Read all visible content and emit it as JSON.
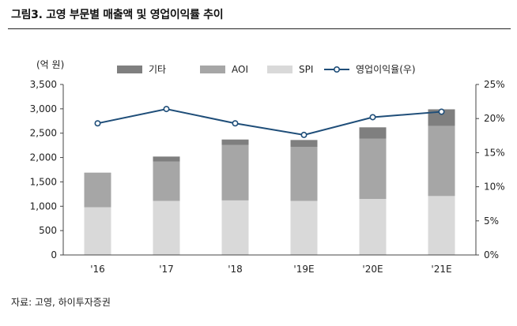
{
  "figure": {
    "title": "그림3.   고영 부문별 매출액 및 영업이익률 추이",
    "source": "자료: 고영, 하이투자증권"
  },
  "chart_data": {
    "type": "bar",
    "stacked": true,
    "categories": [
      "'16",
      "'17",
      "'18",
      "'19E",
      "'20E",
      "'21E"
    ],
    "y_unit_label": "(억 원)",
    "ylim": [
      0,
      3500
    ],
    "y_ticks": [
      "0",
      "500",
      "1,000",
      "1,500",
      "2,000",
      "2,500",
      "3,000",
      "3,500"
    ],
    "y2lim": [
      0,
      25
    ],
    "y2_ticks": [
      "0%",
      "5%",
      "10%",
      "15%",
      "20%",
      "25%"
    ],
    "series": [
      {
        "name": "SPI",
        "kind": "bar",
        "color": "#d9d9d9",
        "values": [
          980,
          1110,
          1120,
          1110,
          1150,
          1210
        ]
      },
      {
        "name": "AOI",
        "kind": "bar",
        "color": "#a6a6a6",
        "values": [
          710,
          810,
          1140,
          1110,
          1240,
          1440
        ]
      },
      {
        "name": "기타",
        "kind": "bar",
        "color": "#7f7f7f",
        "values": [
          0,
          100,
          110,
          140,
          230,
          340
        ]
      },
      {
        "name": "영업이익율(우)",
        "kind": "line",
        "axis": "right",
        "color": "#1f4e79",
        "values": [
          19.3,
          21.4,
          19.3,
          17.6,
          20.2,
          21.0
        ]
      }
    ],
    "legend_order": [
      "기타",
      "AOI",
      "SPI",
      "영업이익율(우)"
    ],
    "legend_position": "top",
    "grid": false
  }
}
